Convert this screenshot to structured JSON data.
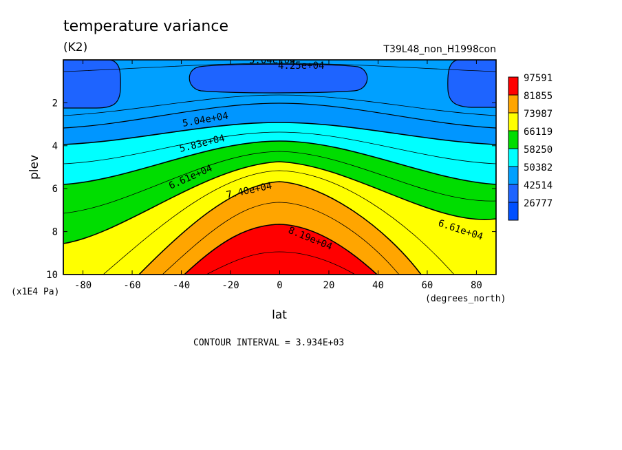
{
  "chart_data": {
    "type": "contour",
    "title": "temperature variance",
    "units": "(K2)",
    "run_label": "T39L48_non_H1998con",
    "xlabel": "lat",
    "x_units": "(degrees_north)",
    "ylabel": "plev",
    "y_units": "(x1E4 Pa)",
    "x_ticks": [
      "-80",
      "-60",
      "-40",
      "-20",
      "0",
      "20",
      "40",
      "60",
      "80"
    ],
    "y_ticks": [
      "2",
      "4",
      "6",
      "8",
      "10"
    ],
    "xlim": [
      -88,
      88
    ],
    "ylim": [
      0,
      10
    ],
    "y_inverted": true,
    "contour_interval": "CONTOUR INTERVAL = 3.934E+03",
    "contour_labels": [
      "5.04e+04",
      "4.25e+04",
      "5.04e+04",
      "5.83e+04",
      "6.61e+04",
      "7.40e+04",
      "8.19e+04",
      "6.61e+04"
    ],
    "colorbar": {
      "labels": [
        "97591",
        "81855",
        "73987",
        "66119",
        "58250",
        "50382",
        "42514",
        "26777"
      ],
      "colors": [
        "#ff0000",
        "#ffa500",
        "#ffff00",
        "#00dd00",
        "#00ffff",
        "#00a0ff",
        "#1e64ff",
        "#0050ff"
      ]
    },
    "bands": [
      {
        "level": "42514",
        "color": "#1e64ff"
      },
      {
        "level": "46448",
        "color": "#0096ff"
      },
      {
        "level": "50382",
        "color": "#00ffff"
      },
      {
        "level": "58250",
        "color": "#00dd00"
      },
      {
        "level": "66119",
        "color": "#ffff00"
      },
      {
        "level": "73987",
        "color": "#ffa500"
      },
      {
        "level": "81855",
        "color": "#ff0000"
      }
    ]
  }
}
